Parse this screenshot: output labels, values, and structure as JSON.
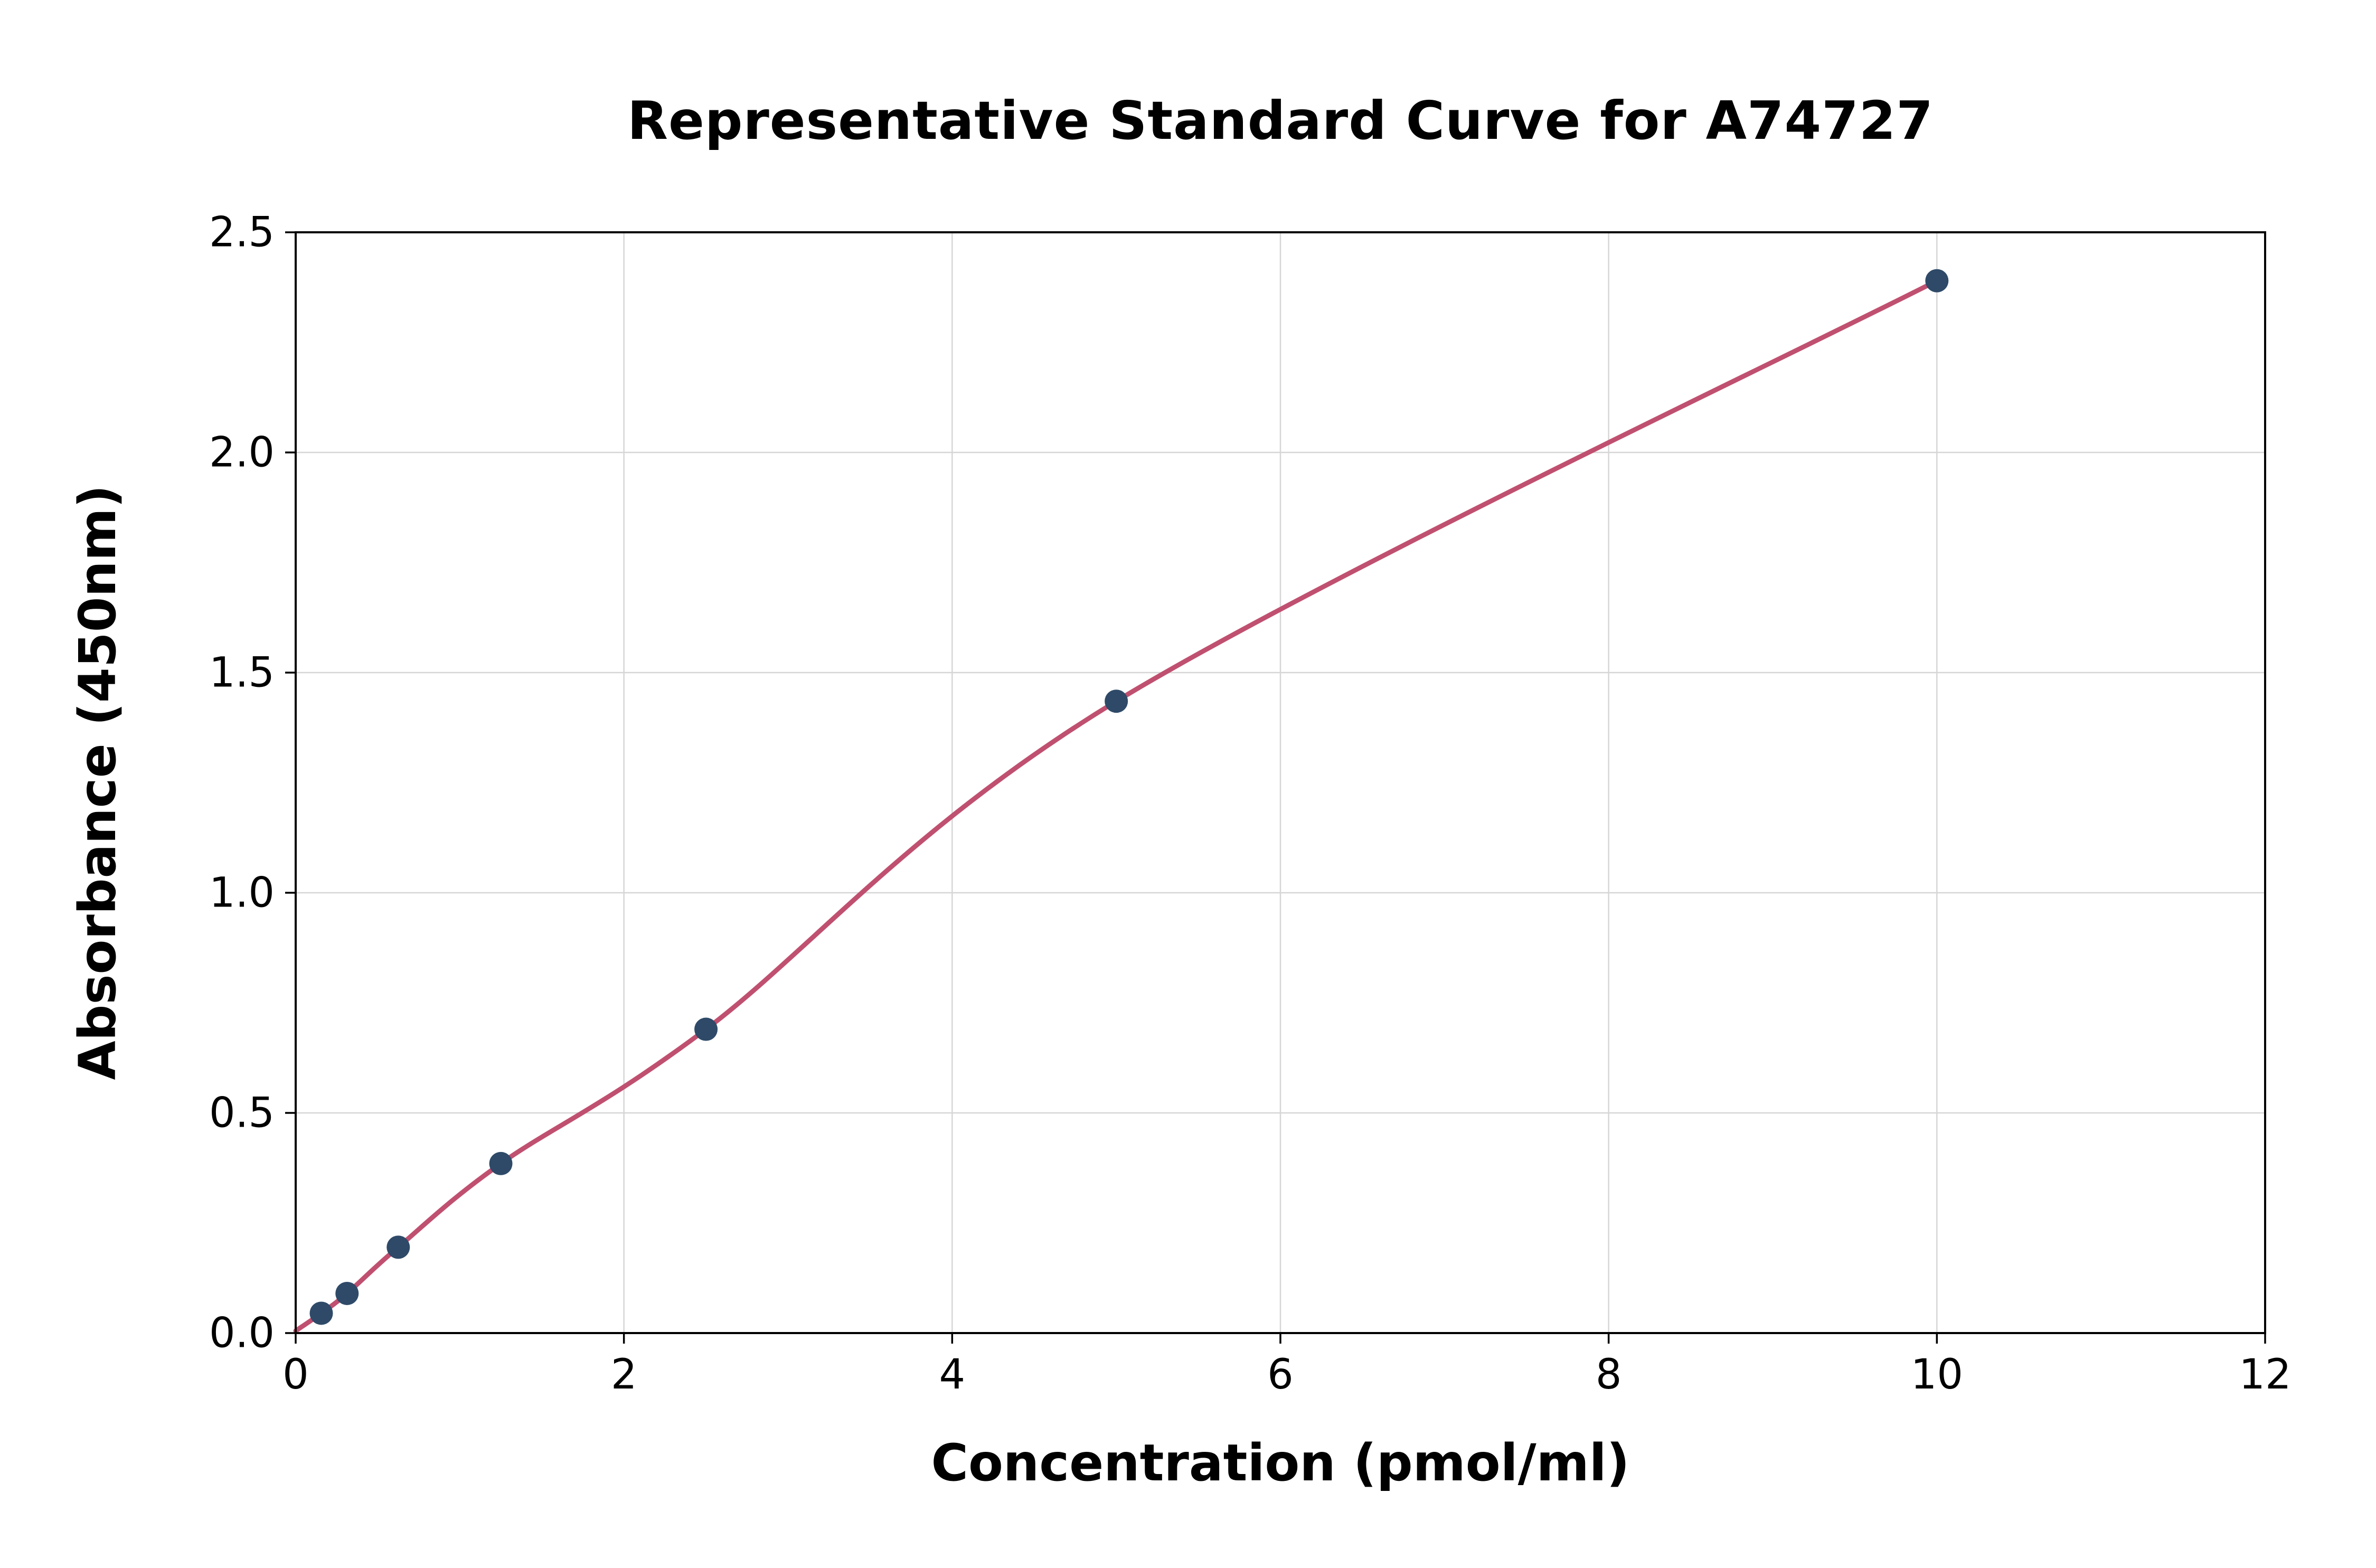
{
  "chart_data": {
    "type": "scatter",
    "title": "Representative Standard Curve for A74727",
    "xlabel": "Concentration (pmol/ml)",
    "ylabel": "Absorbance (450nm)",
    "xlim": [
      0,
      12
    ],
    "ylim": [
      0,
      2.5
    ],
    "xtick_values": [
      0,
      2,
      4,
      6,
      8,
      10,
      12
    ],
    "xtick_labels": [
      "0",
      "2",
      "4",
      "6",
      "8",
      "10",
      "12"
    ],
    "ytick_values": [
      0,
      0.5,
      1.0,
      1.5,
      2.0,
      2.5
    ],
    "ytick_labels": [
      "0.0",
      "0.5",
      "1.0",
      "1.5",
      "2.0",
      "2.5"
    ],
    "grid": true,
    "legend": null,
    "curve_start": {
      "x": 0,
      "y": 0.005
    },
    "points": [
      {
        "x": 0.156,
        "y": 0.045
      },
      {
        "x": 0.313,
        "y": 0.09
      },
      {
        "x": 0.625,
        "y": 0.195
      },
      {
        "x": 1.25,
        "y": 0.385
      },
      {
        "x": 2.5,
        "y": 0.69
      },
      {
        "x": 5.0,
        "y": 1.435
      },
      {
        "x": 10.0,
        "y": 2.39
      }
    ],
    "style": {
      "curve_color": "#c05070",
      "point_color": "#2e4a68",
      "grid_color": "#d6d6d6",
      "frame_color": "#000000",
      "tick_label_color": "#000000",
      "background": "#ffffff"
    }
  }
}
